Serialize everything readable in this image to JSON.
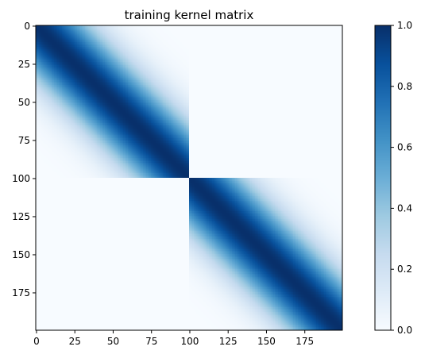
{
  "chart_data": {
    "type": "heatmap",
    "title": "training kernel matrix",
    "colormap": "Blues",
    "shape": [
      200,
      200
    ],
    "description_of_values": {
      "blocks": [
        {
          "rows": [
            0,
            99
          ],
          "cols": [
            0,
            99
          ],
          "kind": "gaussian",
          "length_scale": 24
        },
        {
          "rows": [
            100,
            199
          ],
          "cols": [
            100,
            199
          ],
          "kind": "gaussian",
          "length_scale": 24
        }
      ],
      "off_block_value": 0.0,
      "diagonal_value": 1.0
    },
    "x_ticks": [
      0,
      25,
      50,
      75,
      100,
      125,
      150,
      175
    ],
    "y_ticks": [
      0,
      25,
      50,
      75,
      100,
      125,
      150,
      175
    ],
    "x_tick_labels": [
      "0",
      "25",
      "50",
      "75",
      "100",
      "125",
      "150",
      "175"
    ],
    "y_tick_labels": [
      "0",
      "25",
      "50",
      "75",
      "100",
      "125",
      "150",
      "175"
    ],
    "colorbar": {
      "vmin": 0.0,
      "vmax": 1.0,
      "ticks": [
        0.0,
        0.2,
        0.4,
        0.6,
        0.8,
        1.0
      ],
      "tick_labels": [
        "0.0",
        "0.2",
        "0.4",
        "0.6",
        "0.8",
        "1.0"
      ]
    },
    "xlabel": "",
    "ylabel": ""
  }
}
